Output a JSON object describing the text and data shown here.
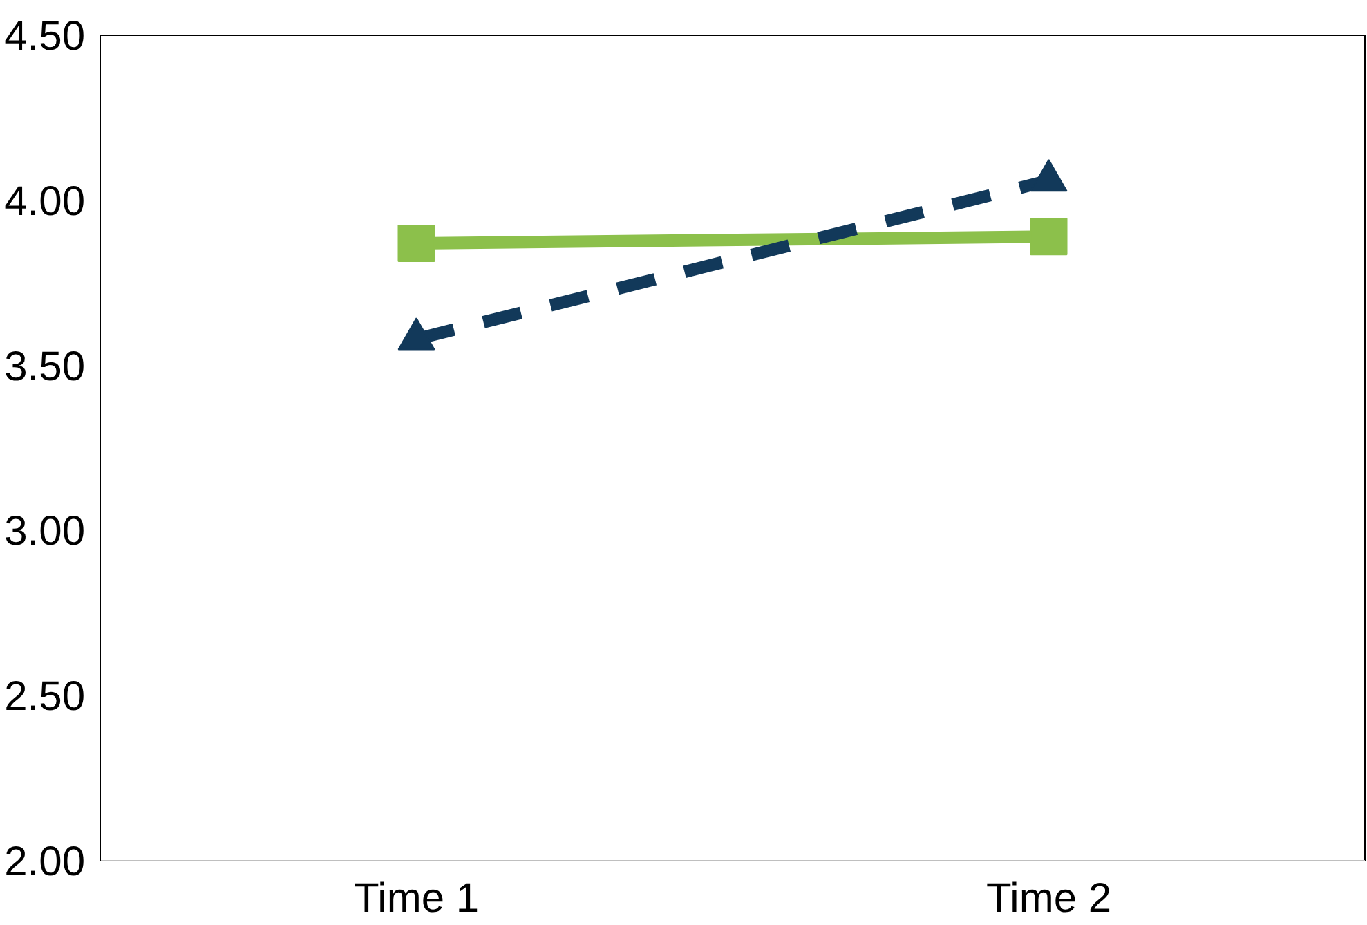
{
  "chart_data": {
    "type": "line",
    "categories": [
      "Time 1",
      "Time 2"
    ],
    "series": [
      {
        "color": "#8cc04b",
        "values": [
          3.87,
          3.89
        ],
        "marker": "square",
        "line_style": "solid"
      },
      {
        "color": "#12395a",
        "values": [
          3.58,
          4.06
        ],
        "marker": "triangle",
        "line_style": "dashed"
      }
    ],
    "ylim": [
      2.0,
      4.5
    ],
    "yticks": [
      {
        "value": 2.0,
        "label": "2.00"
      },
      {
        "value": 2.5,
        "label": "2.50"
      },
      {
        "value": 3.0,
        "label": "3.00"
      },
      {
        "value": 3.5,
        "label": "3.50"
      },
      {
        "value": 4.0,
        "label": "4.00"
      },
      {
        "value": 4.5,
        "label": "4.50"
      }
    ],
    "grid": false
  }
}
